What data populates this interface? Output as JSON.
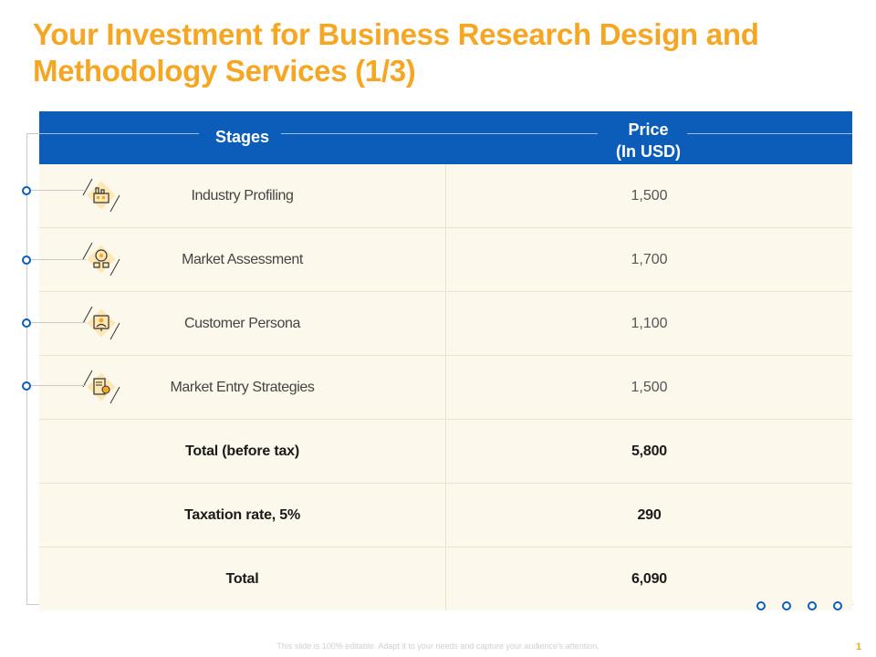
{
  "title": {
    "line1": "Your Investment for Business Research Design and",
    "line2": "Methodology Services (1/3)"
  },
  "table": {
    "header": {
      "stages": "Stages",
      "price_line1": "Price",
      "price_line2": "(In USD)"
    },
    "rows": [
      {
        "stage": "Industry Profiling",
        "price": "1,500",
        "icon": "factory-icon"
      },
      {
        "stage": "Market Assessment",
        "price": "1,700",
        "icon": "market-analysis-icon"
      },
      {
        "stage": "Customer Persona",
        "price": "1,100",
        "icon": "customer-persona-icon"
      },
      {
        "stage": "Market Entry Strategies",
        "price": "1,500",
        "icon": "strategy-icon"
      }
    ],
    "totals": [
      {
        "label": "Total (before tax)",
        "value": "5,800"
      },
      {
        "label": "Taxation rate, 5%",
        "value": "290"
      },
      {
        "label": "Total",
        "value": "6,090"
      }
    ]
  },
  "footer": {
    "note": "This slide is 100% editable. Adapt it to your needs and capture your audience's attention.",
    "page_number": "1"
  },
  "colors": {
    "accent": "#F5A623",
    "header_blue": "#0C5DB9",
    "row_background": "#FDF8EC"
  }
}
